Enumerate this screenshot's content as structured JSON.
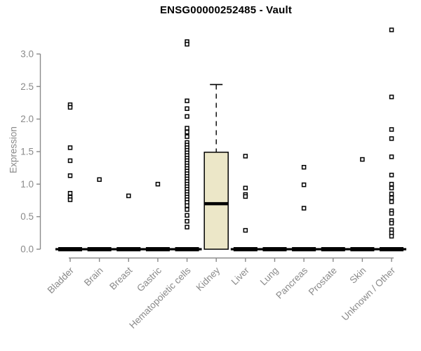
{
  "title": "ENSG00000252485 - Vault",
  "colors": {
    "background": "#ffffff",
    "axis": "#8a8a8a",
    "tick_label": "#8a8a8a",
    "title_text": "#000000",
    "box_fill": "#ece7c8",
    "box_stroke": "#000000",
    "median": "#000000",
    "whisker": "#000000",
    "marker_stroke": "#000000",
    "marker_fill": "#ffffff",
    "zero_bar": "#000000"
  },
  "chart_data": {
    "type": "boxplot",
    "title": "ENSG00000252485 - Vault",
    "xlabel": "",
    "ylabel": "Expression",
    "grid": false,
    "legend": false,
    "ylim": [
      0,
      3.45
    ],
    "ytick_labels": [
      "0.0",
      "0.5",
      "1.0",
      "1.5",
      "2.0",
      "2.5",
      "3.0"
    ],
    "categories": [
      "Bladder",
      "Brain",
      "Breast",
      "Gastric",
      "Hematopoietic cells",
      "Kidney",
      "Liver",
      "Lung",
      "Pancreas",
      "Prostate",
      "Skin",
      "Unknown / Other"
    ],
    "boxes": [
      {
        "category": "Bladder",
        "q1": 0,
        "median": 0,
        "q3": 0,
        "whisker_low": 0,
        "whisker_high": 0,
        "outliers": [
          2.22,
          2.18,
          1.56,
          1.36,
          1.13,
          0.86,
          0.8,
          0.76
        ]
      },
      {
        "category": "Brain",
        "q1": 0,
        "median": 0,
        "q3": 0,
        "whisker_low": 0,
        "whisker_high": 0,
        "outliers": [
          1.07
        ]
      },
      {
        "category": "Breast",
        "q1": 0,
        "median": 0,
        "q3": 0,
        "whisker_low": 0,
        "whisker_high": 0,
        "outliers": [
          0.82
        ]
      },
      {
        "category": "Gastric",
        "q1": 0,
        "median": 0,
        "q3": 0,
        "whisker_low": 0,
        "whisker_high": 0,
        "outliers": [
          1.0
        ]
      },
      {
        "category": "Hematopoietic cells",
        "q1": 0,
        "median": 0,
        "q3": 0,
        "whisker_low": 0,
        "whisker_high": 0,
        "outliers": [
          3.19,
          3.15,
          2.28,
          2.16,
          2.04,
          1.86,
          1.8,
          1.73,
          1.64,
          1.6,
          1.56,
          1.52,
          1.48,
          1.44,
          1.4,
          1.36,
          1.32,
          1.28,
          1.24,
          1.2,
          1.16,
          1.12,
          1.08,
          1.04,
          1.0,
          0.96,
          0.92,
          0.88,
          0.84,
          0.8,
          0.76,
          0.72,
          0.67,
          0.61,
          0.52,
          0.43,
          0.34
        ]
      },
      {
        "category": "Kidney",
        "q1": 0,
        "median": 0.7,
        "q3": 1.49,
        "whisker_low": 0,
        "whisker_high": 2.53,
        "outliers": []
      },
      {
        "category": "Liver",
        "q1": 0,
        "median": 0,
        "q3": 0,
        "whisker_low": 0,
        "whisker_high": 0,
        "outliers": [
          1.43,
          0.94,
          0.84,
          0.81,
          0.29
        ]
      },
      {
        "category": "Lung",
        "q1": 0,
        "median": 0,
        "q3": 0,
        "whisker_low": 0,
        "whisker_high": 0,
        "outliers": []
      },
      {
        "category": "Pancreas",
        "q1": 0,
        "median": 0,
        "q3": 0,
        "whisker_low": 0,
        "whisker_high": 0,
        "outliers": [
          1.26,
          0.99,
          0.63
        ]
      },
      {
        "category": "Prostate",
        "q1": 0,
        "median": 0,
        "q3": 0,
        "whisker_low": 0,
        "whisker_high": 0,
        "outliers": []
      },
      {
        "category": "Skin",
        "q1": 0,
        "median": 0,
        "q3": 0,
        "whisker_low": 0,
        "whisker_high": 0,
        "outliers": [
          1.38
        ]
      },
      {
        "category": "Unknown / Other",
        "q1": 0,
        "median": 0,
        "q3": 0,
        "whisker_low": 0,
        "whisker_high": 0,
        "outliers": [
          3.37,
          2.34,
          1.84,
          1.7,
          1.42,
          1.14,
          1.0,
          0.94,
          0.85,
          0.79,
          0.73,
          0.59,
          0.55,
          0.44,
          0.4,
          0.3,
          0.25,
          0.2
        ]
      }
    ]
  }
}
